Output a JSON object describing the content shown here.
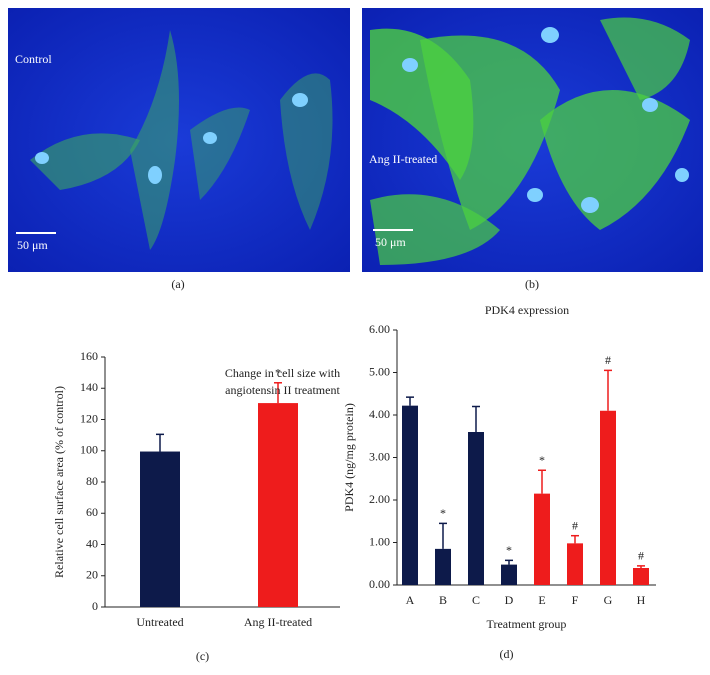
{
  "images": [
    {
      "label": "Control",
      "scale_bar": "50 μm",
      "caption": "(a)"
    },
    {
      "label": "Ang II-treated",
      "scale_bar": "50 μm",
      "caption": "(b)"
    }
  ],
  "chart_data": [
    {
      "type": "bar",
      "title": "Change in cell size with angiotensin II treatment",
      "ylabel": "Relative cell surface area (% of control)",
      "caption": "(c)",
      "categories": [
        "Untreated",
        "Ang II-treated"
      ],
      "values": [
        99.5,
        130.5
      ],
      "errors": [
        11,
        13
      ],
      "colors": [
        "#0d1a4a",
        "#ee1c1c"
      ],
      "markers": [
        null,
        "*"
      ],
      "ylim": [
        0,
        160
      ],
      "yticks": [
        0,
        20,
        40,
        60,
        80,
        100,
        120,
        140,
        160
      ]
    },
    {
      "type": "bar",
      "title": "PDK4 expression",
      "ylabel": "PDK4 (ng/mg protein)",
      "xlabel": "Treatment group",
      "caption": "(d)",
      "categories": [
        "A",
        "B",
        "C",
        "D",
        "E",
        "F",
        "G",
        "H"
      ],
      "values": [
        4.22,
        0.85,
        3.6,
        0.48,
        2.15,
        0.98,
        4.1,
        0.4
      ],
      "errors": [
        0.2,
        0.6,
        0.6,
        0.1,
        0.55,
        0.18,
        0.95,
        0.05
      ],
      "colors": [
        "#0d1a4a",
        "#0d1a4a",
        "#0d1a4a",
        "#0d1a4a",
        "#ee1c1c",
        "#ee1c1c",
        "#ee1c1c",
        "#ee1c1c"
      ],
      "markers": [
        null,
        "*",
        null,
        "*",
        "*",
        "#",
        "#",
        "#"
      ],
      "ylim": [
        0,
        6
      ],
      "yticks": [
        {
          "value": 0,
          "label": "0.00"
        },
        {
          "value": 1,
          "label": "1.00"
        },
        {
          "value": 2,
          "label": "2.00"
        },
        {
          "value": 3,
          "label": "3.00"
        },
        {
          "value": 4,
          "label": "4.00"
        },
        {
          "value": 5,
          "label": "5.00"
        },
        {
          "value": 6,
          "label": "6.00"
        }
      ]
    }
  ]
}
